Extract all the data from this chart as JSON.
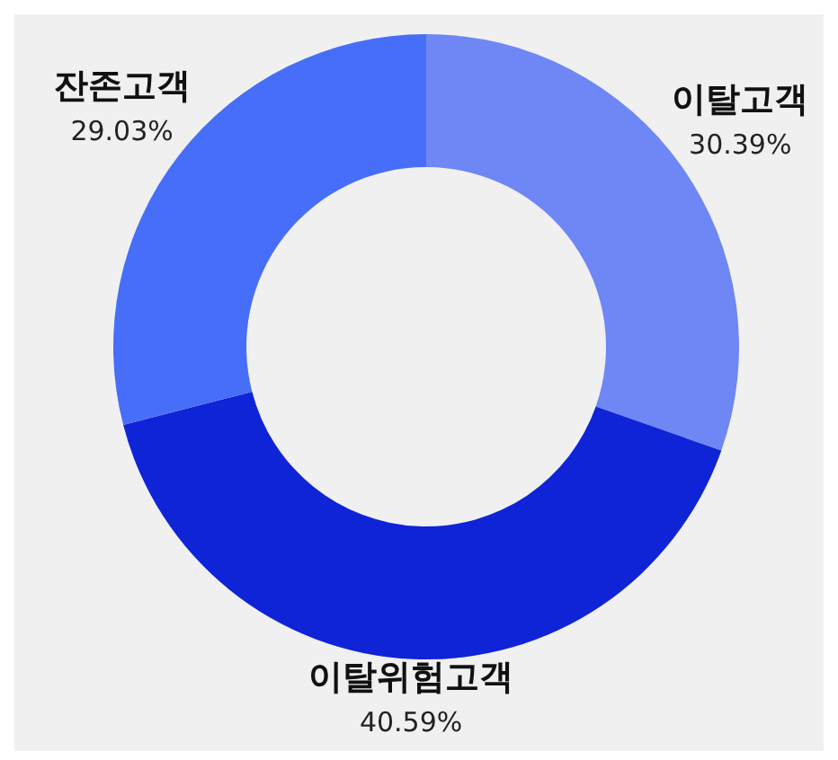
{
  "chart_data": {
    "type": "donut",
    "categories": [
      "이탈고객",
      "이탈위험고객",
      "잔존고객"
    ],
    "values": [
      30.39,
      40.59,
      29.03
    ],
    "value_labels": [
      "30.39%",
      "40.59%",
      "29.03%"
    ],
    "colors": [
      "#6e87f5",
      "#0f24d6",
      "#476ef8"
    ]
  }
}
